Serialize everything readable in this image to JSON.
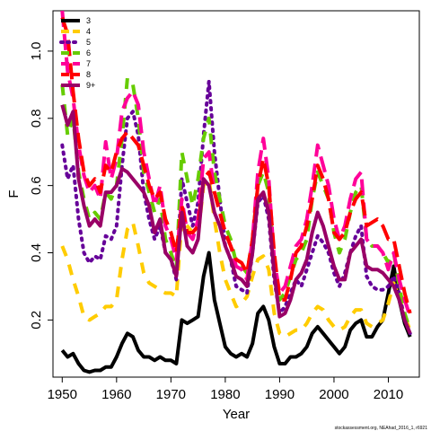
{
  "chart_data": {
    "type": "line",
    "xlabel": "Year",
    "ylabel": "F",
    "xlim": [
      1948.3,
      2015.7
    ],
    "ylim": [
      0.03,
      1.12
    ],
    "xticks": [
      1950,
      1960,
      1970,
      1980,
      1990,
      2000,
      2010
    ],
    "yticks": [
      0.2,
      0.4,
      0.6,
      0.8,
      1.0
    ],
    "ytick_labels": [
      "0.2",
      "0.4",
      "0.6",
      "0.8",
      "1.0"
    ],
    "legend_position": "top-left",
    "grid": false,
    "credit": "stockassessment.org, NEAhad_2016_1, r6921",
    "x": [
      1950,
      1951,
      1952,
      1953,
      1954,
      1955,
      1956,
      1957,
      1958,
      1959,
      1960,
      1961,
      1962,
      1963,
      1964,
      1965,
      1966,
      1967,
      1968,
      1969,
      1970,
      1971,
      1972,
      1973,
      1974,
      1975,
      1976,
      1977,
      1978,
      1979,
      1980,
      1981,
      1982,
      1983,
      1984,
      1985,
      1986,
      1987,
      1988,
      1989,
      1990,
      1991,
      1992,
      1993,
      1994,
      1995,
      1996,
      1997,
      1998,
      1999,
      2000,
      2001,
      2002,
      2003,
      2004,
      2005,
      2006,
      2007,
      2008,
      2009,
      2010,
      2011,
      2012,
      2013,
      2014
    ],
    "series": [
      {
        "name": "3",
        "color": "#000000",
        "dash": "solid",
        "values": [
          0.11,
          0.09,
          0.1,
          0.07,
          0.05,
          0.045,
          0.05,
          0.05,
          0.06,
          0.06,
          0.09,
          0.13,
          0.16,
          0.15,
          0.11,
          0.09,
          0.09,
          0.08,
          0.09,
          0.08,
          0.08,
          0.07,
          0.2,
          0.19,
          0.2,
          0.21,
          0.33,
          0.4,
          0.26,
          0.19,
          0.12,
          0.1,
          0.09,
          0.1,
          0.09,
          0.13,
          0.22,
          0.24,
          0.2,
          0.12,
          0.07,
          0.07,
          0.09,
          0.09,
          0.1,
          0.12,
          0.16,
          0.18,
          0.16,
          0.14,
          0.12,
          0.1,
          0.12,
          0.17,
          0.19,
          0.2,
          0.15,
          0.15,
          0.18,
          0.2,
          0.28,
          0.36,
          0.26,
          0.19,
          0.15
        ]
      },
      {
        "name": "4",
        "color": "#FFCC00",
        "dash": "dashed",
        "values": [
          0.42,
          0.38,
          0.32,
          0.27,
          0.21,
          0.2,
          0.21,
          0.22,
          0.24,
          0.24,
          0.26,
          0.38,
          0.47,
          0.49,
          0.42,
          0.34,
          0.31,
          0.3,
          0.29,
          0.28,
          0.28,
          0.27,
          0.5,
          0.48,
          0.46,
          0.45,
          0.6,
          0.62,
          0.5,
          0.4,
          0.32,
          0.28,
          0.24,
          0.25,
          0.27,
          0.33,
          0.38,
          0.39,
          0.35,
          0.22,
          0.16,
          0.15,
          0.16,
          0.17,
          0.17,
          0.19,
          0.22,
          0.24,
          0.23,
          0.2,
          0.18,
          0.17,
          0.18,
          0.21,
          0.23,
          0.23,
          0.19,
          0.18,
          0.19,
          0.2,
          0.25,
          0.31,
          0.27,
          0.21,
          0.17
        ]
      },
      {
        "name": "5",
        "color": "#660099",
        "dash": "dotted",
        "values": [
          0.72,
          0.62,
          0.66,
          0.5,
          0.4,
          0.37,
          0.39,
          0.38,
          0.45,
          0.44,
          0.48,
          0.66,
          0.8,
          0.82,
          0.75,
          0.58,
          0.5,
          0.44,
          0.48,
          0.4,
          0.38,
          0.32,
          0.62,
          0.55,
          0.48,
          0.55,
          0.75,
          0.91,
          0.7,
          0.56,
          0.42,
          0.38,
          0.3,
          0.29,
          0.28,
          0.4,
          0.55,
          0.57,
          0.5,
          0.32,
          0.22,
          0.24,
          0.28,
          0.32,
          0.3,
          0.35,
          0.4,
          0.45,
          0.43,
          0.4,
          0.34,
          0.3,
          0.34,
          0.4,
          0.45,
          0.48,
          0.33,
          0.3,
          0.29,
          0.29,
          0.3,
          0.33,
          0.28,
          0.2,
          0.16
        ]
      },
      {
        "name": "6",
        "color": "#66CC00",
        "dash": "dashed",
        "values": [
          0.9,
          0.75,
          0.8,
          0.64,
          0.56,
          0.5,
          0.52,
          0.5,
          0.58,
          0.56,
          0.6,
          0.74,
          0.92,
          0.9,
          0.8,
          0.64,
          0.58,
          0.52,
          0.56,
          0.44,
          0.4,
          0.35,
          0.7,
          0.62,
          0.54,
          0.62,
          0.74,
          0.8,
          0.64,
          0.56,
          0.48,
          0.44,
          0.37,
          0.36,
          0.34,
          0.44,
          0.6,
          0.64,
          0.58,
          0.36,
          0.26,
          0.28,
          0.33,
          0.38,
          0.4,
          0.44,
          0.56,
          0.64,
          0.6,
          0.56,
          0.46,
          0.4,
          0.44,
          0.52,
          0.58,
          0.6,
          0.44,
          0.42,
          0.42,
          0.4,
          0.37,
          0.4,
          0.3,
          0.22,
          0.17
        ]
      },
      {
        "name": "7",
        "color": "#FF0099",
        "dash": "long-dashed",
        "values": [
          1.12,
          0.94,
          0.86,
          0.72,
          0.63,
          0.58,
          0.6,
          0.56,
          0.73,
          0.62,
          0.68,
          0.82,
          0.86,
          0.88,
          0.84,
          0.7,
          0.62,
          0.54,
          0.6,
          0.48,
          0.44,
          0.38,
          0.56,
          0.46,
          0.44,
          0.5,
          0.68,
          0.7,
          0.58,
          0.52,
          0.46,
          0.42,
          0.36,
          0.35,
          0.32,
          0.44,
          0.64,
          0.74,
          0.62,
          0.38,
          0.28,
          0.3,
          0.36,
          0.42,
          0.44,
          0.5,
          0.6,
          0.72,
          0.66,
          0.6,
          0.5,
          0.44,
          0.48,
          0.56,
          0.62,
          0.64,
          0.44,
          0.42,
          0.42,
          0.4,
          0.35,
          0.4,
          0.32,
          0.26,
          0.21
        ]
      },
      {
        "name": "8",
        "color": "#FF0000",
        "dash": "long-dashed",
        "values": [
          1.1,
          1.05,
          0.88,
          0.74,
          0.64,
          0.6,
          0.62,
          0.58,
          0.66,
          0.64,
          0.7,
          0.74,
          0.76,
          0.74,
          0.72,
          0.66,
          0.6,
          0.56,
          0.58,
          0.5,
          0.46,
          0.4,
          0.54,
          0.46,
          0.46,
          0.48,
          0.62,
          0.64,
          0.58,
          0.52,
          0.46,
          0.42,
          0.38,
          0.37,
          0.34,
          0.44,
          0.6,
          0.68,
          0.6,
          0.4,
          0.26,
          0.26,
          0.32,
          0.4,
          0.42,
          0.48,
          0.56,
          0.66,
          0.62,
          0.56,
          0.46,
          0.44,
          0.46,
          0.52,
          0.56,
          0.58,
          0.48,
          0.49,
          0.5,
          0.48,
          0.44,
          0.44,
          0.36,
          0.28,
          0.22
        ]
      },
      {
        "name": "9+",
        "color": "#990066",
        "dash": "solid",
        "values": [
          0.84,
          0.78,
          0.82,
          0.62,
          0.54,
          0.48,
          0.5,
          0.48,
          0.58,
          0.58,
          0.6,
          0.65,
          0.64,
          0.62,
          0.6,
          0.58,
          0.54,
          0.46,
          0.5,
          0.4,
          0.38,
          0.33,
          0.52,
          0.42,
          0.4,
          0.44,
          0.62,
          0.6,
          0.52,
          0.48,
          0.42,
          0.38,
          0.33,
          0.32,
          0.3,
          0.4,
          0.56,
          0.58,
          0.52,
          0.34,
          0.21,
          0.22,
          0.26,
          0.32,
          0.34,
          0.38,
          0.46,
          0.52,
          0.48,
          0.42,
          0.36,
          0.32,
          0.32,
          0.4,
          0.42,
          0.44,
          0.36,
          0.35,
          0.35,
          0.34,
          0.32,
          0.3,
          0.26,
          0.2,
          0.16
        ]
      }
    ]
  }
}
